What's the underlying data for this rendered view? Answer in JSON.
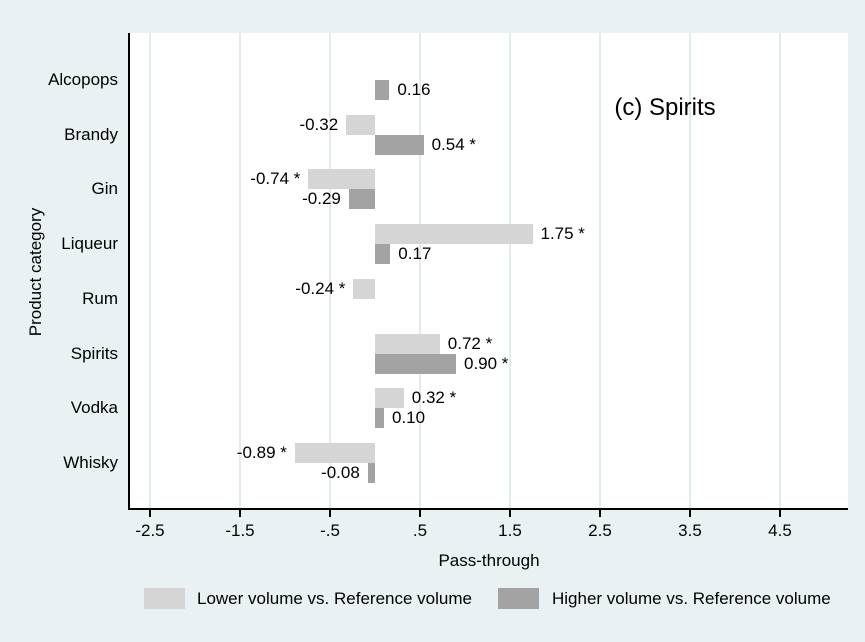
{
  "figure": {
    "panel_title": "(c) Spirits",
    "xlabel": "Pass-through",
    "ylabel": "Product category"
  },
  "legend": {
    "items": [
      {
        "name": "lower",
        "label": "Lower volume vs. Reference volume",
        "color": "#d5d5d5"
      },
      {
        "name": "higher",
        "label": "Higher volume vs. Reference volume",
        "color": "#a3a3a3"
      }
    ]
  },
  "colors": {
    "background": "#eaf1f3",
    "plot_background": "#ffffff",
    "gridline": "#e2ecef",
    "axis": "#000000",
    "lower_bar": "#d5d5d5",
    "higher_bar": "#a3a3a3"
  },
  "chart_data": {
    "type": "bar",
    "orientation": "horizontal",
    "title": "(c) Spirits",
    "xlabel": "Pass-through",
    "ylabel": "Product category",
    "xlim": [
      -2.72,
      5.26
    ],
    "xticks": [
      -2.5,
      -1.5,
      -0.5,
      0.5,
      1.5,
      2.5,
      3.5,
      4.5
    ],
    "xtick_labels": [
      "-2.5",
      "-1.5",
      "-.5",
      ".5",
      "1.5",
      "2.5",
      "3.5",
      "4.5"
    ],
    "grid": "vertical-at-ticks",
    "legend_position": "bottom",
    "categories": [
      "Alcopops",
      "Brandy",
      "Gin",
      "Liqueur",
      "Rum",
      "Spirits",
      "Vodka",
      "Whisky"
    ],
    "series": [
      {
        "name": "Lower volume vs. Reference volume",
        "color": "#d5d5d5",
        "values": [
          null,
          -0.32,
          -0.74,
          1.75,
          -0.24,
          0.72,
          0.32,
          -0.89
        ],
        "labels": [
          "",
          "-0.32",
          "-0.74 *",
          "1.75 *",
          "-0.24 *",
          "0.72 *",
          "0.32 *",
          "-0.89 *"
        ]
      },
      {
        "name": "Higher volume vs. Reference volume",
        "color": "#a3a3a3",
        "values": [
          0.16,
          0.54,
          -0.29,
          0.17,
          null,
          0.9,
          0.1,
          -0.08
        ],
        "labels": [
          "0.16",
          "0.54 *",
          "-0.29",
          "0.17",
          "",
          "0.90 *",
          "0.10",
          "-0.08"
        ]
      }
    ]
  }
}
